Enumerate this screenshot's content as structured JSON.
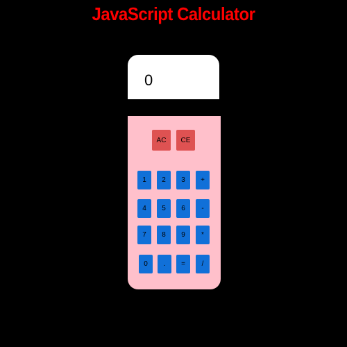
{
  "page": {
    "title": "JavaScript Calculator"
  },
  "display": {
    "value": "0"
  },
  "clear_buttons": {
    "ac": "AC",
    "ce": "CE"
  },
  "keys": {
    "k1": "1",
    "k2": "2",
    "k3": "3",
    "plus": "+",
    "k4": "4",
    "k5": "5",
    "k6": "6",
    "minus": "-",
    "k7": "7",
    "k8": "8",
    "k9": "9",
    "multiply": "*",
    "k0": "0",
    "dot": ".",
    "equals": "=",
    "divide": "/"
  },
  "colors": {
    "background": "#000000",
    "title": "#ff0000",
    "body": "#ffc0cb",
    "display": "#ffffff",
    "key": "#1170d8",
    "clear_key": "#de5252"
  }
}
